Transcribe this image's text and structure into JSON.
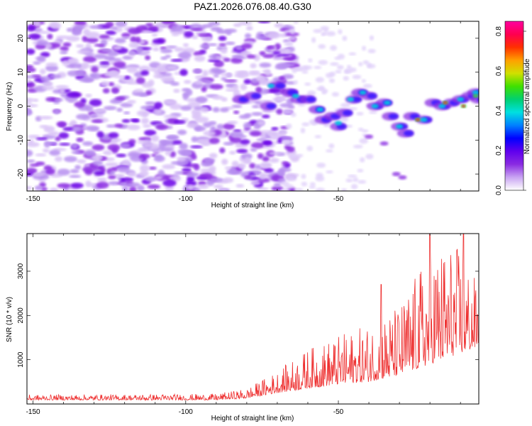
{
  "title": "PAZ1.2026.076.08.40.G30",
  "chart_data": [
    {
      "type": "heatmap",
      "xlabel": "Height of straight line (km)",
      "ylabel": "Frequency (Hz)",
      "xlim": [
        -152,
        -4
      ],
      "ylim": [
        -25,
        25
      ],
      "xticks": [
        -150,
        -100,
        -50
      ],
      "yticks": [
        -20,
        -10,
        0,
        10,
        20
      ],
      "colorbar": {
        "label": "Normalized spectral amplitude",
        "range": [
          0,
          0.85
        ],
        "ticks": [
          "0.0",
          "0.2",
          "0.4",
          "0.6",
          "0.8"
        ],
        "colors": [
          "#ffffff",
          "#c9a4f2",
          "#8a2be2",
          "#6000ee",
          "#0000ff",
          "#0080ff",
          "#00e0e0",
          "#00d070",
          "#40e000",
          "#d0e000",
          "#ffa000",
          "#ff3000",
          "#ff0050",
          "#ff00a0"
        ]
      },
      "description_points": [
        {
          "x": -145,
          "f": 15
        },
        {
          "x": -80,
          "f": 3
        },
        {
          "x": -70,
          "f": 6
        },
        {
          "x": -58,
          "f": 3
        },
        {
          "x": -50,
          "f": -5
        },
        {
          "x": -45,
          "f": 2
        },
        {
          "x": -35,
          "f": 1
        },
        {
          "x": -25,
          "f": -4
        },
        {
          "x": -20,
          "f": 1
        },
        {
          "x": -12,
          "f": 0
        },
        {
          "x": -5,
          "f": 3
        },
        {
          "x": -30,
          "f": -20
        }
      ]
    },
    {
      "type": "line",
      "xlabel": "Height of straight line (km)",
      "ylabel": "SNR (10 * v/v)",
      "xlim": [
        -152,
        -4
      ],
      "ylim": [
        0,
        3850
      ],
      "xticks": [
        -150,
        -100,
        -50
      ],
      "yticks": [
        1000,
        2000,
        3000
      ],
      "series": [
        {
          "name": "SNR",
          "color": "#ee3030",
          "envelope": [
            {
              "x": -152,
              "base": 90,
              "amp": 120
            },
            {
              "x": -90,
              "base": 90,
              "amp": 140
            },
            {
              "x": -80,
              "base": 130,
              "amp": 220
            },
            {
              "x": -70,
              "base": 250,
              "amp": 500
            },
            {
              "x": -60,
              "base": 350,
              "amp": 900
            },
            {
              "x": -50,
              "base": 450,
              "amp": 1100
            },
            {
              "x": -40,
              "base": 500,
              "amp": 1300
            },
            {
              "x": -30,
              "base": 650,
              "amp": 1600
            },
            {
              "x": -20,
              "base": 900,
              "amp": 2600
            },
            {
              "x": -12,
              "base": 1100,
              "amp": 2600
            },
            {
              "x": -4,
              "base": 1300,
              "amp": 1400
            }
          ],
          "spikes": [
            {
              "x": -36,
              "y": 2700
            },
            {
              "x": -20,
              "y": 3850
            },
            {
              "x": -9,
              "y": 3850
            },
            {
              "x": -18,
              "y": 2800
            }
          ]
        }
      ]
    }
  ]
}
